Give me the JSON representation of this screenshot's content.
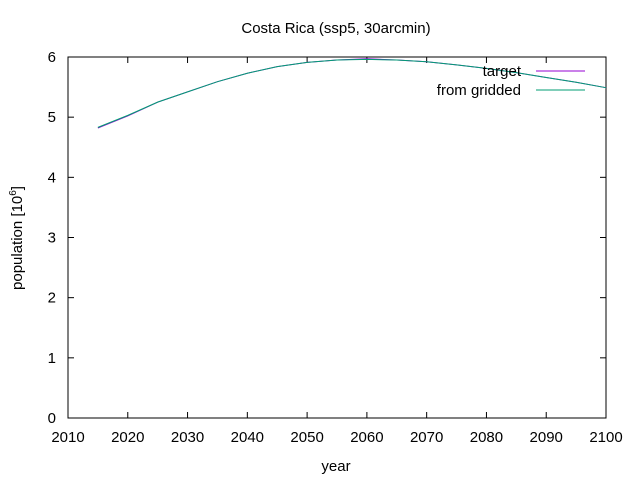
{
  "chart_data": {
    "type": "line",
    "title": "Costa Rica (ssp5, 30arcmin)",
    "xlabel": "year",
    "ylabel_base": "population [10",
    "ylabel_exp": "6",
    "ylabel_tail": "]",
    "xlim": [
      2010,
      2100
    ],
    "ylim": [
      0,
      6
    ],
    "xticks": [
      2010,
      2020,
      2030,
      2040,
      2050,
      2060,
      2070,
      2080,
      2090,
      2100
    ],
    "yticks": [
      0,
      1,
      2,
      3,
      4,
      5,
      6
    ],
    "grid": false,
    "legend_position": "top-right",
    "series": [
      {
        "name": "target",
        "color": "#9400d3",
        "x": [
          2015,
          2020,
          2025,
          2030,
          2035,
          2040,
          2045,
          2050,
          2055,
          2060,
          2065,
          2070,
          2075,
          2080,
          2085,
          2090,
          2095,
          2100
        ],
        "y": [
          4.82,
          5.02,
          5.25,
          5.42,
          5.59,
          5.73,
          5.84,
          5.91,
          5.95,
          5.97,
          5.95,
          5.92,
          5.87,
          5.81,
          5.74,
          5.66,
          5.58,
          5.49
        ]
      },
      {
        "name": "from gridded",
        "color": "#009e73",
        "x": [
          2015,
          2020,
          2025,
          2030,
          2035,
          2040,
          2045,
          2050,
          2055,
          2060,
          2065,
          2070,
          2075,
          2080,
          2085,
          2090,
          2095,
          2100
        ],
        "y": [
          4.83,
          5.03,
          5.25,
          5.42,
          5.59,
          5.73,
          5.84,
          5.91,
          5.95,
          5.96,
          5.95,
          5.92,
          5.87,
          5.81,
          5.74,
          5.66,
          5.58,
          5.49
        ]
      }
    ]
  }
}
